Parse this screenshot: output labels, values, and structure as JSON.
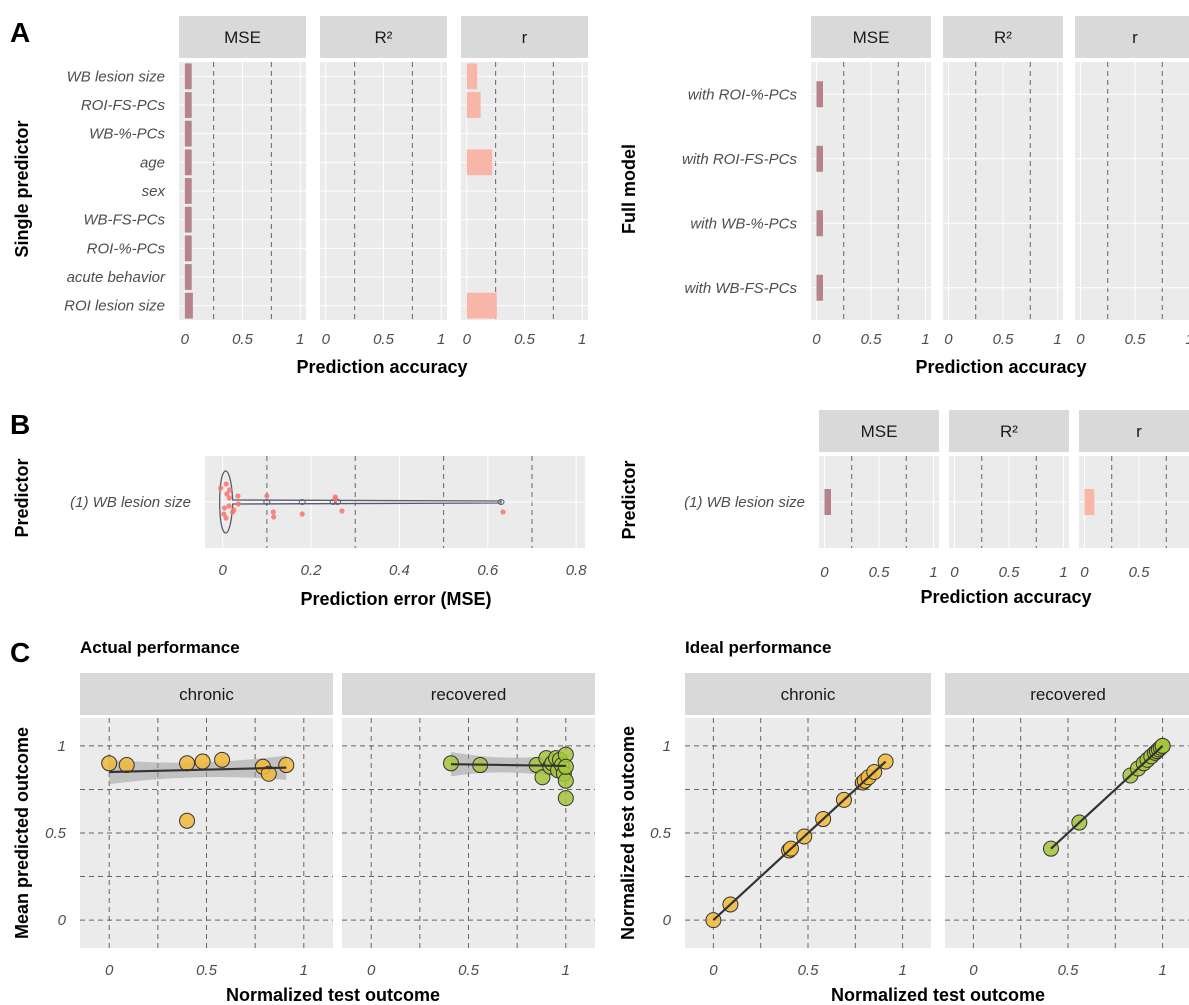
{
  "colors": {
    "mse_bar": "#b5838d",
    "r_bar": "#f7b6a8",
    "chronic_point": "#f2b93b",
    "recovered_point": "#a6c63b",
    "violin": "#5a5a6e",
    "jitter": "#f8766d",
    "ribbon": "#9e9e9e",
    "line": "#333333"
  },
  "labels": {
    "A": "A",
    "B": "B",
    "C": "C",
    "single_predictor": "Single predictor",
    "full_model": "Full model",
    "predictor": "Predictor",
    "prediction_accuracy": "Prediction accuracy",
    "prediction_error": "Prediction error (MSE)",
    "actual_performance": "Actual performance",
    "ideal_performance": "Ideal performance",
    "mean_predicted_outcome": "Mean predicted outcome",
    "normalized_test_outcome": "Normalized test outcome",
    "strip_mse": "MSE",
    "strip_r2": "R²",
    "strip_r": "r",
    "strip_chronic": "chronic",
    "strip_recovered": "recovered"
  },
  "chart_data": [
    {
      "id": "A-left",
      "type": "bar",
      "facets": [
        "MSE",
        "R²",
        "r"
      ],
      "categories": [
        "WB lesion size",
        "ROI-FS-PCs",
        "WB-%-PCs",
        "age",
        "sex",
        "WB-FS-PCs",
        "ROI-%-PCs",
        "acute behavior",
        "ROI lesion size"
      ],
      "series": [
        {
          "name": "MSE",
          "values": [
            0.06,
            0.06,
            0.06,
            0.06,
            0.06,
            0.06,
            0.06,
            0.06,
            0.07
          ]
        },
        {
          "name": "R²",
          "values": [
            0,
            0,
            0,
            0,
            0,
            0,
            0,
            0,
            0
          ]
        },
        {
          "name": "r",
          "values": [
            0.09,
            0.12,
            0,
            0.22,
            0,
            0,
            0,
            0,
            0.26
          ]
        }
      ],
      "x_ticks": [
        "0",
        "0.5",
        "1"
      ],
      "xlim": [
        -0.05,
        1.05
      ],
      "ylabel": "Single predictor",
      "xlabel": "Prediction accuracy"
    },
    {
      "id": "A-right",
      "type": "bar",
      "facets": [
        "MSE",
        "R²",
        "r"
      ],
      "categories": [
        "with ROI-%-PCs",
        "with ROI-FS-PCs",
        "with WB-%-PCs",
        "with WB-FS-PCs"
      ],
      "series": [
        {
          "name": "MSE",
          "values": [
            0.06,
            0.06,
            0.06,
            0.06
          ]
        },
        {
          "name": "R²",
          "values": [
            0,
            0,
            0,
            0
          ]
        },
        {
          "name": "r",
          "values": [
            0,
            0,
            0,
            0
          ]
        }
      ],
      "x_ticks": [
        "0",
        "0.5",
        "1"
      ],
      "xlim": [
        -0.05,
        1.05
      ],
      "ylabel": "Full model",
      "xlabel": "Prediction accuracy"
    },
    {
      "id": "B-left",
      "type": "scatter",
      "category": "(1) WB lesion size",
      "violin_range": [
        0,
        0.63
      ],
      "points": [
        0.0,
        0.004,
        0.005,
        0.007,
        0.008,
        0.01,
        0.012,
        0.015,
        0.018,
        0.02,
        0.025,
        0.03,
        0.04,
        0.1,
        0.11,
        0.12,
        0.18,
        0.25,
        0.26,
        0.27,
        0.63
      ],
      "x_ticks": [
        "0",
        "0.2",
        "0.4",
        "0.6",
        "0.8"
      ],
      "xlim": [
        -0.04,
        0.82
      ],
      "ylabel": "Predictor",
      "xlabel": "Prediction error (MSE)"
    },
    {
      "id": "B-right",
      "type": "bar",
      "facets": [
        "MSE",
        "R²",
        "r"
      ],
      "categories": [
        "(1) WB lesion size"
      ],
      "series": [
        {
          "name": "MSE",
          "values": [
            0.06
          ]
        },
        {
          "name": "R²",
          "values": [
            0
          ]
        },
        {
          "name": "r",
          "values": [
            0.09
          ]
        }
      ],
      "x_ticks": [
        "0",
        "0.5",
        "1"
      ],
      "xlim": [
        -0.05,
        1.05
      ],
      "ylabel": "Predictor",
      "xlabel": "Prediction accuracy"
    },
    {
      "id": "C-left",
      "type": "scatter",
      "subtitle": "Actual performance",
      "facets": [
        "chronic",
        "recovered"
      ],
      "series": [
        {
          "name": "chronic",
          "x": [
            0.0,
            0.09,
            0.4,
            0.4,
            0.48,
            0.58,
            0.79,
            0.82,
            0.91
          ],
          "y": [
            0.9,
            0.89,
            0.9,
            0.57,
            0.91,
            0.92,
            0.88,
            0.84,
            0.89
          ],
          "fit": [
            0.85,
            0.875
          ]
        },
        {
          "name": "recovered",
          "x": [
            0.41,
            0.56,
            0.85,
            0.88,
            0.9,
            0.92,
            0.93,
            0.95,
            0.96,
            0.97,
            0.98,
            0.99,
            1.0,
            1.0,
            1.0,
            1.0
          ],
          "y": [
            0.9,
            0.89,
            0.89,
            0.82,
            0.93,
            0.88,
            0.9,
            0.93,
            0.86,
            0.92,
            0.89,
            0.84,
            0.95,
            0.8,
            0.7,
            0.88
          ],
          "fit": [
            0.895,
            0.885
          ]
        }
      ],
      "x_ticks": [
        "0",
        "0.5",
        "1"
      ],
      "y_ticks": [
        "0",
        "0.5",
        "1"
      ],
      "xlim": [
        -0.15,
        1.15
      ],
      "ylim": [
        -0.16,
        1.16
      ],
      "ylabel": "Mean predicted outcome",
      "xlabel": "Normalized test outcome"
    },
    {
      "id": "C-right",
      "type": "scatter",
      "subtitle": "Ideal performance",
      "facets": [
        "chronic",
        "recovered"
      ],
      "series": [
        {
          "name": "chronic",
          "x": [
            0.0,
            0.09,
            0.4,
            0.41,
            0.48,
            0.58,
            0.69,
            0.79,
            0.8,
            0.82,
            0.85,
            0.91
          ],
          "y": [
            0.0,
            0.09,
            0.4,
            0.41,
            0.48,
            0.58,
            0.69,
            0.79,
            0.8,
            0.82,
            0.85,
            0.91
          ]
        },
        {
          "name": "recovered",
          "x": [
            0.41,
            0.56,
            0.83,
            0.87,
            0.9,
            0.92,
            0.94,
            0.96,
            0.97,
            0.98,
            0.99,
            1.0,
            1.0
          ],
          "y": [
            0.41,
            0.56,
            0.83,
            0.87,
            0.9,
            0.92,
            0.94,
            0.96,
            0.97,
            0.98,
            0.99,
            1.0,
            1.0
          ]
        }
      ],
      "x_ticks": [
        "0",
        "0.5",
        "1"
      ],
      "y_ticks": [
        "0",
        "0.5",
        "1"
      ],
      "xlim": [
        -0.15,
        1.15
      ],
      "ylim": [
        -0.16,
        1.16
      ],
      "ylabel": "Normalized test outcome",
      "xlabel": "Normalized test outcome"
    }
  ]
}
